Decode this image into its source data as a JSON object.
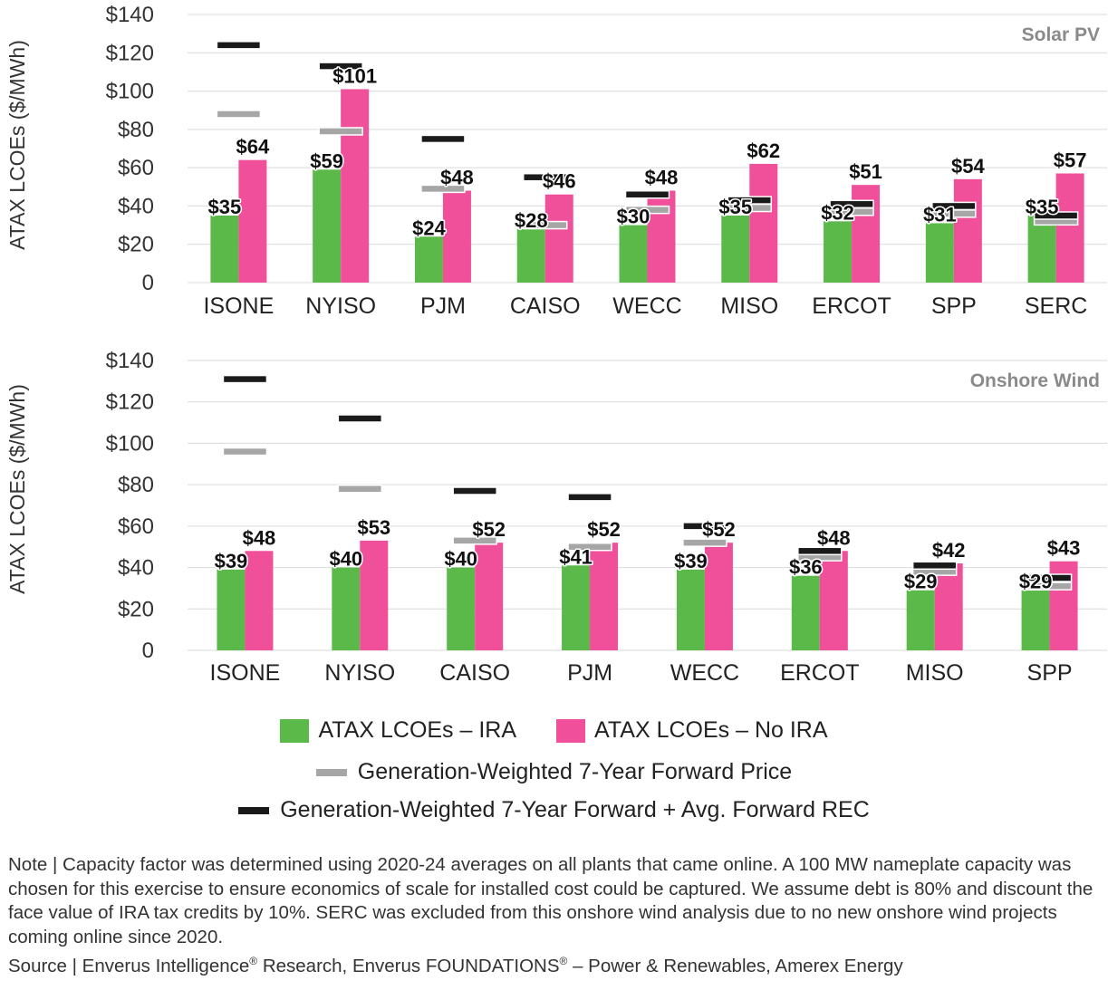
{
  "colors": {
    "ira": "#5bb94a",
    "no_ira": "#f04f9a",
    "forward_price": "#a6a6a6",
    "forward_rec": "#1a1a1a",
    "panel_title": "#8a8a8a"
  },
  "chart_data": [
    {
      "type": "bar",
      "title": "Solar PV",
      "ylabel": "ATAX LCOEs ($/MWh)",
      "ylim": [
        0,
        140
      ],
      "yticks": [
        "0",
        "$20",
        "$40",
        "$60",
        "$80",
        "$100",
        "$120",
        "$140"
      ],
      "categories": [
        "ISONE",
        "NYISO",
        "PJM",
        "CAISO",
        "WECC",
        "MISO",
        "ERCOT",
        "SPP",
        "SERC"
      ],
      "series": [
        {
          "name": "ATAX LCOEs – IRA",
          "values": [
            35,
            59,
            24,
            28,
            30,
            35,
            32,
            31,
            35
          ],
          "labels": [
            "$35",
            "$59",
            "$24",
            "$28",
            "$30",
            "$35",
            "$32",
            "$31",
            "$35"
          ]
        },
        {
          "name": "ATAX LCOEs – No IRA",
          "values": [
            64,
            101,
            48,
            46,
            48,
            62,
            51,
            54,
            57
          ],
          "labels": [
            "$64",
            "$101",
            "$48",
            "$46",
            "$48",
            "$62",
            "$51",
            "$54",
            "$57"
          ]
        }
      ],
      "markers": [
        {
          "name": "Generation-Weighted 7-Year Forward Price",
          "values": [
            88,
            79,
            49,
            30,
            38,
            39,
            37,
            36,
            32
          ]
        },
        {
          "name": "Generation-Weighted 7-Year Forward + Avg. Forward REC",
          "values": [
            124,
            113,
            75,
            55,
            46,
            43,
            41,
            40,
            35
          ]
        }
      ]
    },
    {
      "type": "bar",
      "title": "Onshore Wind",
      "ylabel": "ATAX LCOEs ($/MWh)",
      "ylim": [
        0,
        140
      ],
      "yticks": [
        "0",
        "$20",
        "$40",
        "$60",
        "$80",
        "$100",
        "$120",
        "$140"
      ],
      "categories": [
        "ISONE",
        "NYISO",
        "CAISO",
        "PJM",
        "WECC",
        "ERCOT",
        "MISO",
        "SPP"
      ],
      "series": [
        {
          "name": "ATAX LCOEs – IRA",
          "values": [
            39,
            40,
            40,
            41,
            39,
            36,
            29,
            29
          ],
          "labels": [
            "$39",
            "$40",
            "$40",
            "$41",
            "$39",
            "$36",
            "$29",
            "$29"
          ]
        },
        {
          "name": "ATAX LCOEs – No IRA",
          "values": [
            48,
            53,
            52,
            52,
            52,
            48,
            42,
            43
          ],
          "labels": [
            "$48",
            "$53",
            "$52",
            "$52",
            "$52",
            "$48",
            "$42",
            "$43"
          ]
        }
      ],
      "markers": [
        {
          "name": "Generation-Weighted 7-Year Forward Price",
          "values": [
            96,
            78,
            53,
            50,
            52,
            45,
            38,
            31
          ]
        },
        {
          "name": "Generation-Weighted 7-Year Forward + Avg. Forward REC",
          "values": [
            131,
            112,
            77,
            74,
            60,
            48,
            41,
            35
          ]
        }
      ]
    }
  ],
  "legend": {
    "ira": "ATAX LCOEs – IRA",
    "no_ira": "ATAX LCOEs – No IRA",
    "forward_price": "Generation-Weighted 7-Year Forward Price",
    "forward_rec": "Generation-Weighted 7-Year Forward + Avg. Forward REC"
  },
  "note": {
    "text": "Note | Capacity factor was determined using 2020-24 averages on all plants that came online. A 100 MW nameplate capacity was chosen for this exercise to ensure economics of scale for installed cost could be captured. We assume debt is 80% and discount the face value of IRA tax credits by 10%. SERC was excluded from this onshore wind analysis due to no new onshore wind projects coming online since 2020.",
    "source_prefix": "Source | Enverus Intelligence",
    "reg": "®",
    "source_mid": " Research, Enverus FOUNDATIONS",
    "source_suffix": " – Power & Renewables, Amerex Energy"
  }
}
